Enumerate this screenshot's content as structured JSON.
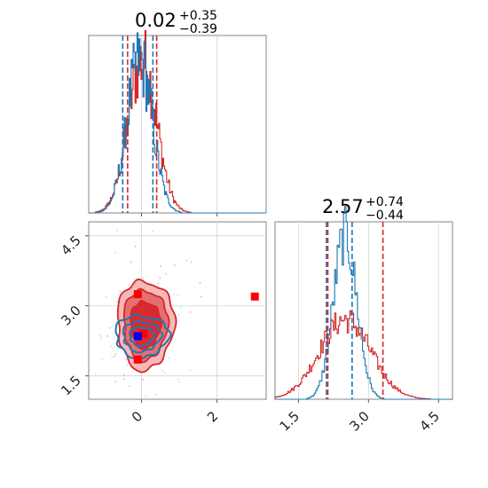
{
  "colors": {
    "red": "#d62728",
    "blue": "#1f77b4",
    "red_fill_light": "#f4b5b5",
    "red_fill_mid": "#e46a6a",
    "red_fill_dark": "#d8262b",
    "marker_red": "#ff0000",
    "marker_blue": "#0000ff",
    "grid": "#d3d3d3",
    "axis": "#666666"
  },
  "chart_data": [
    {
      "type": "histogram",
      "panel": "top-left",
      "title": {
        "main": "0.02",
        "sup": "+0.35",
        "sub": "−0.39"
      },
      "xlim": [
        -1.4,
        3.3
      ],
      "grid": true,
      "series": [
        {
          "name": "",
          "color": "#d62728",
          "center": 0.02,
          "sigma": 0.38
        },
        {
          "name": "",
          "color": "#1f77b4",
          "center": -0.05,
          "sigma": 0.34
        }
      ],
      "quantile_lines": [
        {
          "x": -0.5,
          "color": "#1f77b4"
        },
        {
          "x": -0.37,
          "color": "#d62728"
        },
        {
          "x": 0.3,
          "color": "#1f77b4"
        },
        {
          "x": 0.4,
          "color": "#d62728"
        }
      ]
    },
    {
      "type": "contour",
      "panel": "bottom-left",
      "xlim": [
        -1.4,
        3.3
      ],
      "ylim": [
        1.0,
        4.8
      ],
      "x_ticks": [
        {
          "value": 0,
          "label": "0"
        },
        {
          "value": 2,
          "label": "2"
        }
      ],
      "y_ticks": [
        {
          "value": 1.5,
          "label": "1.5"
        },
        {
          "value": 3.0,
          "label": "3.0"
        },
        {
          "value": 4.5,
          "label": "4.5"
        }
      ],
      "grid": true,
      "red_contours": {
        "center": [
          0.1,
          2.6
        ],
        "radii_x": [
          0.75,
          0.58,
          0.4
        ],
        "radii_y": [
          0.95,
          0.75,
          0.5
        ]
      },
      "blue_contours": {
        "center": [
          0.0,
          2.35
        ],
        "radii_x": [
          0.7,
          0.5,
          0.32
        ],
        "radii_y": [
          0.45,
          0.32,
          0.2
        ]
      },
      "markers": [
        {
          "x": -0.1,
          "y": 3.25,
          "color": "#ff0000"
        },
        {
          "x": 3.0,
          "y": 3.2,
          "color": "#ff0000"
        },
        {
          "x": 0.05,
          "y": 2.4,
          "color": "#ff0000"
        },
        {
          "x": -0.1,
          "y": 1.85,
          "color": "#ff0000"
        },
        {
          "x": -0.1,
          "y": 2.35,
          "color": "#0000ff"
        }
      ]
    },
    {
      "type": "histogram",
      "panel": "bottom-right",
      "title": {
        "main": "2.57",
        "sup": "+0.74",
        "sub": "−0.44"
      },
      "xlim": [
        1.0,
        4.8
      ],
      "x_ticks": [
        {
          "value": 1.5,
          "label": "1.5"
        },
        {
          "value": 3.0,
          "label": "3.0"
        },
        {
          "value": 4.5,
          "label": "4.5"
        }
      ],
      "grid": true,
      "series": [
        {
          "name": "",
          "color": "#d62728",
          "center": 2.5,
          "sigma": 0.55
        },
        {
          "name": "",
          "color": "#1f77b4",
          "center": 2.5,
          "sigma": 0.25
        }
      ],
      "quantile_lines": [
        {
          "x": 2.1,
          "color": "#1f77b4"
        },
        {
          "x": 2.13,
          "color": "#d62728"
        },
        {
          "x": 2.65,
          "color": "#1f77b4"
        },
        {
          "x": 3.31,
          "color": "#d62728"
        }
      ]
    }
  ]
}
